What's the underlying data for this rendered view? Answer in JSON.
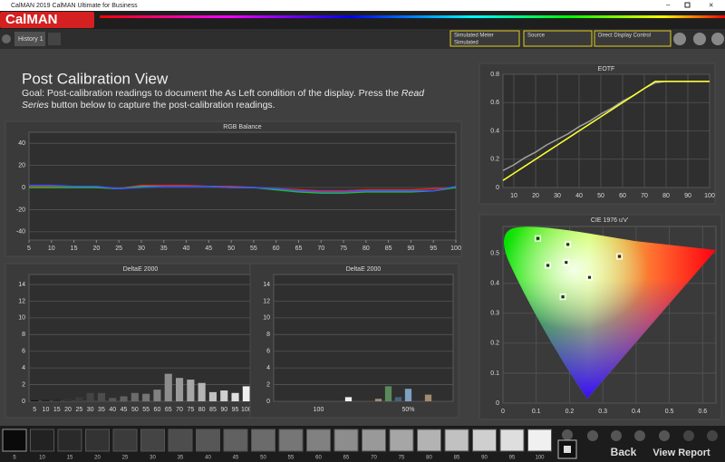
{
  "window": {
    "title": "CalMAN 2019 CalMAN Ultimate for Business"
  },
  "app": {
    "logo": "CalMAN"
  },
  "tabs": [
    "History 1"
  ],
  "dropdowns": [
    {
      "label": "Simulated Meter",
      "value": "Simulated"
    },
    {
      "label": "Source"
    },
    {
      "label": "Direct Display Control"
    }
  ],
  "page": {
    "title": "Post Calibration View",
    "goal": [
      "Goal: Post-calibration readings to document the As Left condition of the display. Press the ",
      "Read Series",
      " button below to capture the post-calibration readings."
    ]
  },
  "chart_data": [
    {
      "type": "line",
      "title": "RGB Balance",
      "x": [
        5,
        10,
        15,
        20,
        25,
        30,
        35,
        40,
        45,
        50,
        55,
        60,
        65,
        70,
        75,
        80,
        85,
        90,
        95,
        100
      ],
      "xlim": [
        5,
        100
      ],
      "xticks": [
        5,
        10,
        15,
        20,
        25,
        30,
        35,
        40,
        45,
        50,
        55,
        60,
        65,
        70,
        75,
        80,
        85,
        90,
        95,
        100
      ],
      "ylim": [
        -47.5,
        50
      ],
      "yticks": [
        40,
        20,
        0,
        -20,
        -40
      ],
      "grid": true,
      "xgrid": false,
      "series": [
        {
          "color": "#e02525",
          "values": [
            1,
            1,
            1,
            0,
            -1,
            2,
            2,
            2,
            1,
            1,
            0,
            -1,
            -2,
            -3,
            -3,
            -2,
            -2,
            -2,
            -1,
            0
          ]
        },
        {
          "color": "#22c022",
          "values": [
            0,
            0,
            0,
            0,
            -1,
            1,
            1,
            1,
            1,
            0,
            0,
            -2,
            -4,
            -5,
            -5,
            -4,
            -4,
            -4,
            -3,
            0
          ]
        },
        {
          "color": "#3a55ff",
          "values": [
            2,
            2,
            1,
            1,
            -1,
            0,
            1,
            1,
            1,
            0,
            0,
            -1,
            -3,
            -4,
            -4,
            -3,
            -3,
            -3,
            -3,
            1
          ]
        }
      ]
    },
    {
      "type": "line",
      "title": "EOTF",
      "x": [
        5,
        10,
        15,
        20,
        25,
        30,
        35,
        40,
        45,
        50,
        55,
        60,
        65,
        70,
        75,
        80,
        85,
        90,
        95,
        100
      ],
      "xlim": [
        5,
        100
      ],
      "xticks": [
        10,
        20,
        30,
        40,
        50,
        60,
        70,
        80,
        90,
        100
      ],
      "ylim": [
        0,
        0.8
      ],
      "yticks": [
        0,
        0.2,
        0.4,
        0.6,
        0.8
      ],
      "grid": true,
      "xgrid": true,
      "series": [
        {
          "color": "#a0a0a0",
          "values": [
            0.12,
            0.16,
            0.21,
            0.25,
            0.3,
            0.34,
            0.38,
            0.43,
            0.47,
            0.52,
            0.56,
            0.61,
            0.65,
            0.7,
            0.74,
            0.75,
            0.75,
            0.75,
            0.75,
            0.75
          ]
        },
        {
          "color": "#ffff33",
          "values": [
            0.05,
            0.1,
            0.15,
            0.2,
            0.25,
            0.3,
            0.35,
            0.4,
            0.45,
            0.5,
            0.55,
            0.6,
            0.65,
            0.7,
            0.75,
            0.75,
            0.75,
            0.75,
            0.75,
            0.75
          ]
        }
      ]
    },
    {
      "type": "scatter",
      "title": "CIE 1976 u'v'",
      "x": [
        0.105,
        0.195,
        0.135,
        0.19,
        0.35,
        0.26,
        0.18
      ],
      "values": [
        0.55,
        0.53,
        0.46,
        0.47,
        0.49,
        0.42,
        0.355
      ],
      "color": "#ffffff",
      "xlim": [
        0,
        0.64
      ],
      "xticks": [
        0,
        0.1,
        0.2,
        0.3,
        0.4,
        0.5,
        0.6
      ],
      "ylim": [
        0,
        0.59
      ],
      "yticks": [
        0,
        0.1,
        0.2,
        0.3,
        0.4,
        0.5
      ],
      "grid": true,
      "xgrid": true
    },
    {
      "type": "bar",
      "title": "DeltaE 2000",
      "categories": [
        5,
        10,
        15,
        20,
        25,
        30,
        35,
        40,
        45,
        50,
        55,
        60,
        65,
        70,
        75,
        80,
        85,
        90,
        95,
        100
      ],
      "values": [
        0.1,
        0.2,
        0.3,
        0.3,
        0.5,
        1.0,
        1.0,
        0.4,
        0.6,
        1.0,
        0.9,
        1.4,
        3.3,
        2.8,
        2.6,
        2.2,
        1.1,
        1.3,
        1.0,
        1.8
      ],
      "colors": [
        "#0a0a0a",
        "#222222",
        "#2a2a2a",
        "#333333",
        "#3b3b3b",
        "#444444",
        "#4d4d4d",
        "#575757",
        "#616161",
        "#6b6b6b",
        "#767676",
        "#818181",
        "#8d8d8d",
        "#999999",
        "#a6a6a6",
        "#b3b3b3",
        "#c1c1c1",
        "#cfcfcf",
        "#dedede",
        "#f0f0f0"
      ],
      "ylim": [
        0,
        15.2
      ],
      "yticks": [
        0,
        2,
        4,
        6,
        8,
        10,
        12,
        14
      ],
      "grid": true
    },
    {
      "type": "bar",
      "title": "DeltaE 2000",
      "categories": [
        null,
        null,
        null,
        null,
        100,
        null,
        null,
        null,
        null,
        null,
        null,
        null,
        null,
        "50%",
        null,
        null,
        null,
        null
      ],
      "values": [
        0,
        0,
        0,
        0,
        0,
        0,
        0,
        0.5,
        0,
        0,
        0.3,
        1.8,
        0.5,
        1.5,
        0,
        0.8,
        0,
        0
      ],
      "colors": [
        "#888",
        "#888",
        "#888",
        "#888",
        "#888",
        "#888",
        "#888",
        "#f0f0f0",
        "#888",
        "#888",
        "#a08c6e",
        "#5a8a5a",
        "#44627e",
        "#7f9fbf",
        "#888",
        "#a08c6e",
        "#888",
        "#888"
      ],
      "ylim": [
        0,
        15.2
      ],
      "yticks": [
        0,
        2,
        4,
        6,
        8,
        10,
        12,
        14
      ],
      "grid": true
    }
  ],
  "swatches": [
    {
      "label": 5,
      "color": "#0a0a0a"
    },
    {
      "label": 10,
      "color": "#222222"
    },
    {
      "label": 15,
      "color": "#2a2a2a"
    },
    {
      "label": 20,
      "color": "#333333"
    },
    {
      "label": 25,
      "color": "#3b3b3b"
    },
    {
      "label": 30,
      "color": "#444444"
    },
    {
      "label": 35,
      "color": "#4d4d4d"
    },
    {
      "label": 40,
      "color": "#575757"
    },
    {
      "label": 45,
      "color": "#616161"
    },
    {
      "label": 50,
      "color": "#6b6b6b"
    },
    {
      "label": 55,
      "color": "#767676"
    },
    {
      "label": 60,
      "color": "#818181"
    },
    {
      "label": 65,
      "color": "#8d8d8d"
    },
    {
      "label": 70,
      "color": "#999999"
    },
    {
      "label": 75,
      "color": "#a6a6a6"
    },
    {
      "label": 80,
      "color": "#b3b3b3"
    },
    {
      "label": 85,
      "color": "#c1c1c1"
    },
    {
      "label": 90,
      "color": "#cfcfcf"
    },
    {
      "label": 95,
      "color": "#dedede"
    },
    {
      "label": 100,
      "color": "#f0f0f0"
    }
  ],
  "buttons": {
    "back": "Back",
    "view_report": "View Report"
  }
}
